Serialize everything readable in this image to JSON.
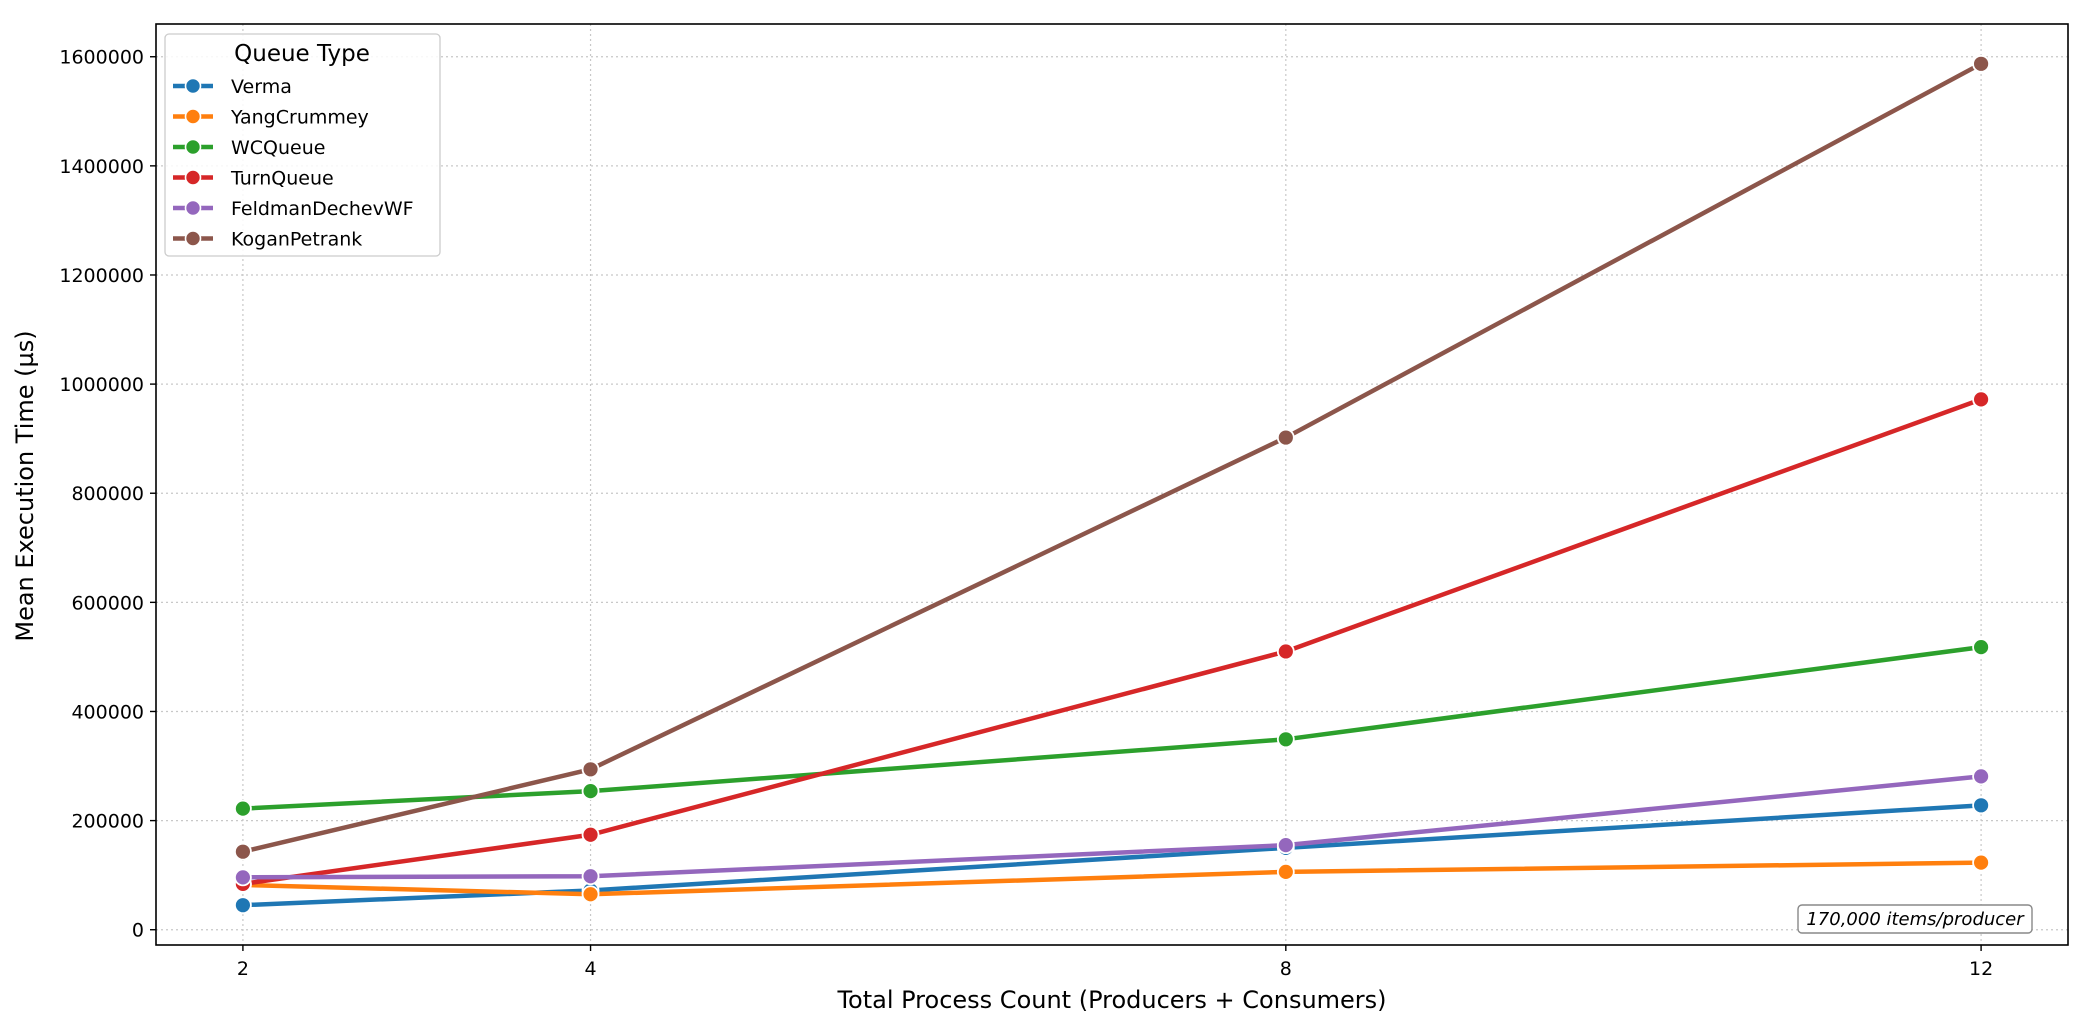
{
  "chart_data": {
    "type": "line",
    "title": "",
    "xlabel": "Total Process Count (Producers + Consumers)",
    "ylabel": "Mean Execution Time (µs)",
    "x": [
      2,
      4,
      8,
      12
    ],
    "xlim": [
      1.5,
      12.5
    ],
    "ylim": [
      -28000,
      1660000
    ],
    "yticks": [
      0,
      200000,
      400000,
      600000,
      800000,
      1000000,
      1200000,
      1400000,
      1600000
    ],
    "grid": true,
    "legend": {
      "title": "Queue Type",
      "placement": "top-left"
    },
    "series": [
      {
        "name": "Verma",
        "color": "#1f77b4",
        "values": [
          45000,
          72000,
          150000,
          228000
        ]
      },
      {
        "name": "YangCrummey",
        "color": "#ff7f0e",
        "values": [
          82000,
          65000,
          106000,
          123000
        ]
      },
      {
        "name": "WCQueue",
        "color": "#2ca02c",
        "values": [
          222000,
          254000,
          349000,
          518000
        ]
      },
      {
        "name": "TurnQueue",
        "color": "#d62728",
        "values": [
          84000,
          174000,
          510000,
          972000
        ]
      },
      {
        "name": "FeldmanDechevWF",
        "color": "#9467bd",
        "values": [
          96000,
          98000,
          155000,
          281000
        ]
      },
      {
        "name": "KoganPetrank",
        "color": "#8c564b",
        "values": [
          143000,
          294000,
          902000,
          1587000
        ]
      }
    ],
    "annotation": "170,000 items/producer"
  }
}
